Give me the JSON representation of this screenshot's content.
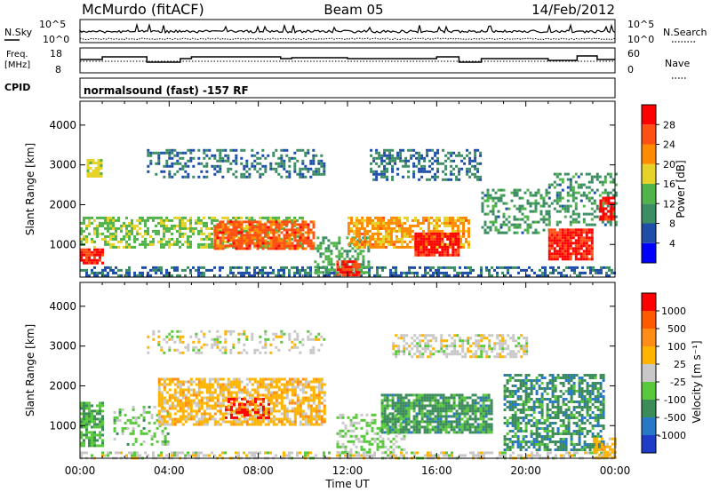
{
  "header": {
    "station": "McMurdo (fitACF)",
    "beam": "Beam 05",
    "date": "14/Feb/2012"
  },
  "strip_labels": {
    "nsky": "N.Sky",
    "nsearch": "N.Search",
    "freq_line1": "Freq.",
    "freq_line2": "[MHz]",
    "nave": "Nave",
    "cpid": "CPID",
    "cpid_value": "normalsound (fast) -157 RF",
    "noise_ticks_left": [
      "10^5",
      "10^0"
    ],
    "noise_ticks_right": [
      "10^5",
      "10^0"
    ],
    "freq_ticks_left": [
      "18",
      "8"
    ],
    "nave_ticks_right": [
      "60",
      "0"
    ]
  },
  "colorbars": {
    "power": {
      "label": "Power [dB]",
      "ticks": [
        "28",
        "24",
        "20",
        "16",
        "12",
        "8",
        "4"
      ],
      "colors": [
        "#0000ff",
        "#1e4ea8",
        "#3c8c64",
        "#50b44a",
        "#e6d228",
        "#ff8c00",
        "#ff5014",
        "#ff0000"
      ]
    },
    "velocity": {
      "label": "Velocity [m s⁻¹]",
      "ticks": [
        "1000",
        "500",
        "100",
        "25",
        "-25",
        "-100",
        "-500",
        "-1000"
      ],
      "colors": [
        "#1e3cc8",
        "#2878c8",
        "#3c8c5a",
        "#5ac83c",
        "#c8c8c8",
        "#ffb400",
        "#ff8c14",
        "#ff5a00",
        "#ff0000"
      ]
    }
  },
  "axes": {
    "ylabel": "Slant Range [km]",
    "xlabel": "Time UT",
    "yticks": [
      "1000",
      "2000",
      "3000",
      "4000"
    ],
    "xticks": [
      "00:00",
      "04:00",
      "08:00",
      "12:00",
      "16:00",
      "20:00",
      "00:00"
    ]
  },
  "chart_data": [
    {
      "type": "heatmap",
      "name": "power",
      "x_range_hours": [
        0,
        24
      ],
      "y_range_km": [
        180,
        4600
      ],
      "color_scale": [
        0,
        30
      ],
      "bands": [
        {
          "t0": 0.0,
          "t1": 24.0,
          "r0": 200,
          "r1": 450,
          "v": 7,
          "density": 0.5
        },
        {
          "t0": 0.0,
          "t1": 1.0,
          "r0": 500,
          "r1": 900,
          "v": 27,
          "density": 0.9
        },
        {
          "t0": 0.0,
          "t1": 10.0,
          "r0": 900,
          "r1": 1700,
          "v": 14,
          "density": 0.55
        },
        {
          "t0": 0.3,
          "t1": 1.0,
          "r0": 2700,
          "r1": 3150,
          "v": 16,
          "density": 0.8
        },
        {
          "t0": 3.0,
          "t1": 11.0,
          "r0": 2700,
          "r1": 3400,
          "v": 8,
          "density": 0.35
        },
        {
          "t0": 6.0,
          "t1": 10.5,
          "r0": 900,
          "r1": 1600,
          "v": 24,
          "density": 0.75
        },
        {
          "t0": 10.5,
          "t1": 13.0,
          "r0": 300,
          "r1": 1200,
          "v": 12,
          "density": 0.5
        },
        {
          "t0": 11.5,
          "t1": 12.5,
          "r0": 250,
          "r1": 600,
          "v": 27,
          "density": 0.8
        },
        {
          "t0": 12.0,
          "t1": 17.5,
          "r0": 900,
          "r1": 1700,
          "v": 20,
          "density": 0.7
        },
        {
          "t0": 15.0,
          "t1": 17.0,
          "r0": 700,
          "r1": 1300,
          "v": 28,
          "density": 0.85
        },
        {
          "t0": 13.0,
          "t1": 18.0,
          "r0": 2600,
          "r1": 3400,
          "v": 8,
          "density": 0.4
        },
        {
          "t0": 18.0,
          "t1": 21.0,
          "r0": 1300,
          "r1": 2400,
          "v": 10,
          "density": 0.45
        },
        {
          "t0": 21.0,
          "t1": 23.0,
          "r0": 600,
          "r1": 1400,
          "v": 27,
          "density": 0.9
        },
        {
          "t0": 21.0,
          "t1": 24.0,
          "r0": 1500,
          "r1": 2800,
          "v": 10,
          "density": 0.35
        },
        {
          "t0": 23.3,
          "t1": 24.0,
          "r0": 1600,
          "r1": 2200,
          "v": 28,
          "density": 0.8
        }
      ]
    },
    {
      "type": "heatmap",
      "name": "velocity",
      "x_range_hours": [
        0,
        24
      ],
      "y_range_km": [
        180,
        4600
      ],
      "color_scale": [
        -1000,
        1000
      ],
      "bands": [
        {
          "t0": 0.0,
          "t1": 24.0,
          "r0": 200,
          "r1": 350,
          "v": 0,
          "density": 0.5
        },
        {
          "t0": 0.0,
          "t1": 1.0,
          "r0": 500,
          "r1": 1600,
          "v": -300,
          "density": 0.7
        },
        {
          "t0": 1.5,
          "t1": 4.0,
          "r0": 500,
          "r1": 1500,
          "v": -200,
          "density": 0.3
        },
        {
          "t0": 3.5,
          "t1": 11.0,
          "r0": 1000,
          "r1": 2200,
          "v": 200,
          "density": 0.7
        },
        {
          "t0": 6.5,
          "t1": 8.5,
          "r0": 1200,
          "r1": 1700,
          "v": 800,
          "density": 0.5
        },
        {
          "t0": 3.0,
          "t1": 11.0,
          "r0": 2800,
          "r1": 3400,
          "v": 0,
          "density": 0.3
        },
        {
          "t0": 11.5,
          "t1": 14.5,
          "r0": 300,
          "r1": 1300,
          "v": -150,
          "density": 0.4
        },
        {
          "t0": 13.5,
          "t1": 18.5,
          "r0": 800,
          "r1": 1800,
          "v": -400,
          "density": 0.8
        },
        {
          "t0": 14.0,
          "t1": 20.0,
          "r0": 2700,
          "r1": 3300,
          "v": 0,
          "density": 0.5
        },
        {
          "t0": 19.0,
          "t1": 23.5,
          "r0": 400,
          "r1": 2300,
          "v": -450,
          "density": 0.6
        },
        {
          "t0": 23.0,
          "t1": 24.0,
          "r0": 200,
          "r1": 700,
          "v": 200,
          "density": 0.6
        }
      ]
    }
  ]
}
